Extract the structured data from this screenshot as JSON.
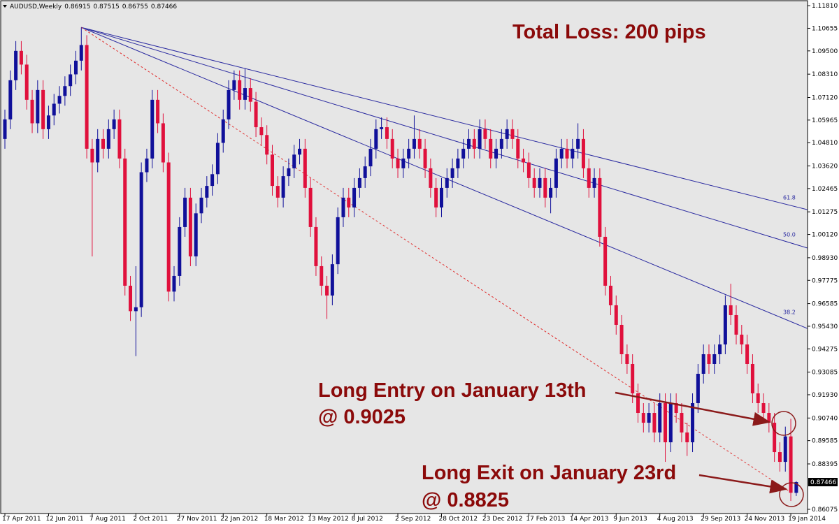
{
  "chart_data": {
    "type": "candlestick",
    "symbol": "AUDUSD,Weekly",
    "title": "Total Loss: 200 pips",
    "annotations": [
      "Long Entry on January 13th",
      "@ 0.9025",
      "Long Exit on January 23rd",
      "@ 0.8825"
    ],
    "bull_color": "#10109a",
    "bear_color": "#e0103c",
    "grid": false,
    "ylim": [
      0.8586,
      1.121
    ],
    "yticks": [
      {
        "value": 1.1181,
        "label": "1.11810"
      },
      1.10655,
      {
        "value": 1.095,
        "label": "1.09500"
      },
      {
        "value": 1.0831,
        "label": "1.08310"
      },
      {
        "value": 1.0712,
        "label": "1.07120"
      },
      1.05965,
      {
        "value": 1.0481,
        "label": "1.04810"
      },
      {
        "value": 1.0362,
        "label": "1.03620"
      },
      1.02465,
      1.01275,
      {
        "value": 1.0012,
        "label": "1.00120"
      },
      {
        "value": 0.9893,
        "label": "0.98930"
      },
      0.97775,
      0.96585,
      {
        "value": 0.9543,
        "label": "0.95430"
      },
      0.94275,
      0.93085,
      {
        "value": 0.9193,
        "label": "0.91930"
      },
      {
        "value": 0.9074,
        "label": "0.90740"
      },
      0.89585,
      0.88395,
      0.86075
    ],
    "categories": [
      "17 Apr 2011",
      null,
      null,
      null,
      null,
      null,
      null,
      null,
      "12 Jun 2011",
      null,
      null,
      null,
      null,
      null,
      null,
      null,
      "7 Aug 2011",
      null,
      null,
      null,
      null,
      null,
      null,
      null,
      "2 Oct 2011",
      null,
      null,
      null,
      null,
      null,
      null,
      null,
      "27 Nov 2011",
      null,
      null,
      null,
      null,
      null,
      null,
      null,
      "22 Jan 2012",
      null,
      null,
      null,
      null,
      null,
      null,
      null,
      "18 Mar 2012",
      null,
      null,
      null,
      null,
      null,
      null,
      null,
      "13 May 2012",
      null,
      null,
      null,
      null,
      null,
      null,
      null,
      "8 Jul 2012",
      null,
      null,
      null,
      null,
      null,
      null,
      null,
      "2 Sep 2012",
      null,
      null,
      null,
      null,
      null,
      null,
      null,
      "28 Oct 2012",
      null,
      null,
      null,
      null,
      null,
      null,
      null,
      "23 Dec 2012",
      null,
      null,
      null,
      null,
      null,
      null,
      null,
      "17 Feb 2013",
      null,
      null,
      null,
      null,
      null,
      null,
      null,
      "14 Apr 2013",
      null,
      null,
      null,
      null,
      null,
      null,
      null,
      "9 Jun 2013",
      null,
      null,
      null,
      null,
      null,
      null,
      null,
      "4 Aug 2013",
      null,
      null,
      null,
      null,
      null,
      null,
      null,
      "29 Sep 2013",
      null,
      null,
      null,
      null,
      null,
      null,
      null,
      "24 Nov 2013",
      null,
      null,
      null,
      null,
      null,
      null,
      null,
      "19 Jan 2014",
      null
    ],
    "candles": [
      [
        1.05,
        1.065,
        1.045,
        1.06
      ],
      [
        1.06,
        1.085,
        1.055,
        1.08
      ],
      [
        1.08,
        1.1,
        1.075,
        1.095
      ],
      [
        1.095,
        1.1,
        1.083,
        1.088
      ],
      [
        1.088,
        1.093,
        1.065,
        1.07
      ],
      [
        1.07,
        1.075,
        1.053,
        1.058
      ],
      [
        1.058,
        1.08,
        1.053,
        1.075
      ],
      [
        1.075,
        1.08,
        1.05,
        1.055
      ],
      [
        1.055,
        1.067,
        1.05,
        1.062
      ],
      [
        1.062,
        1.073,
        1.057,
        1.068
      ],
      [
        1.068,
        1.077,
        1.063,
        1.072
      ],
      [
        1.072,
        1.082,
        1.067,
        1.077
      ],
      [
        1.077,
        1.088,
        1.072,
        1.083
      ],
      [
        1.083,
        1.095,
        1.078,
        1.09
      ],
      [
        1.09,
        1.107,
        1.085,
        1.098
      ],
      [
        1.098,
        1.103,
        1.04,
        1.045
      ],
      [
        1.045,
        1.05,
        0.99,
        1.038
      ],
      [
        1.038,
        1.055,
        1.033,
        1.05
      ],
      [
        1.05,
        1.055,
        1.04,
        1.045
      ],
      [
        1.045,
        1.06,
        1.04,
        1.055
      ],
      [
        1.055,
        1.065,
        1.05,
        1.06
      ],
      [
        1.06,
        1.065,
        1.035,
        1.04
      ],
      [
        1.04,
        1.045,
        0.97,
        0.975
      ],
      [
        0.975,
        0.98,
        0.957,
        0.962
      ],
      [
        0.962,
        0.985,
        0.939,
        0.964
      ],
      [
        0.964,
        1.038,
        0.959,
        1.033
      ],
      [
        1.033,
        1.045,
        1.028,
        1.04
      ],
      [
        1.04,
        1.075,
        1.035,
        1.07
      ],
      [
        1.07,
        1.075,
        1.053,
        1.058
      ],
      [
        1.058,
        1.063,
        1.033,
        1.038
      ],
      [
        1.038,
        1.043,
        0.967,
        0.972
      ],
      [
        0.972,
        0.985,
        0.967,
        0.98
      ],
      [
        0.98,
        1.01,
        0.975,
        1.005
      ],
      [
        1.005,
        1.025,
        1.0,
        1.02
      ],
      [
        1.02,
        1.025,
        0.985,
        0.99
      ],
      [
        0.99,
        1.017,
        0.985,
        1.012
      ],
      [
        1.012,
        1.025,
        1.007,
        1.02
      ],
      [
        1.02,
        1.031,
        1.015,
        1.026
      ],
      [
        1.026,
        1.037,
        1.021,
        1.032
      ],
      [
        1.032,
        1.053,
        1.027,
        1.048
      ],
      [
        1.048,
        1.065,
        1.043,
        1.06
      ],
      [
        1.06,
        1.08,
        1.055,
        1.075
      ],
      [
        1.075,
        1.085,
        1.07,
        1.08
      ],
      [
        1.08,
        1.085,
        1.065,
        1.07
      ],
      [
        1.07,
        1.086,
        1.065,
        1.076
      ],
      [
        1.076,
        1.081,
        1.064,
        1.069
      ],
      [
        1.069,
        1.074,
        1.051,
        1.056
      ],
      [
        1.056,
        1.061,
        1.047,
        1.052
      ],
      [
        1.052,
        1.057,
        1.037,
        1.042
      ],
      [
        1.042,
        1.047,
        1.021,
        1.026
      ],
      [
        1.026,
        1.031,
        1.015,
        1.02
      ],
      [
        1.02,
        1.036,
        1.015,
        1.031
      ],
      [
        1.031,
        1.04,
        1.026,
        1.035
      ],
      [
        1.035,
        1.047,
        1.03,
        1.042
      ],
      [
        1.042,
        1.05,
        1.037,
        1.045
      ],
      [
        1.045,
        1.05,
        1.02,
        1.025
      ],
      [
        1.025,
        1.03,
        1.0,
        1.005
      ],
      [
        1.005,
        1.01,
        0.98,
        0.985
      ],
      [
        0.985,
        0.99,
        0.97,
        0.975
      ],
      [
        0.975,
        0.98,
        0.958,
        0.97
      ],
      [
        0.97,
        0.991,
        0.965,
        0.986
      ],
      [
        0.986,
        1.015,
        0.981,
        1.01
      ],
      [
        1.01,
        1.025,
        1.005,
        1.02
      ],
      [
        1.02,
        1.025,
        1.01,
        1.015
      ],
      [
        1.015,
        1.03,
        1.01,
        1.025
      ],
      [
        1.025,
        1.035,
        1.02,
        1.03
      ],
      [
        1.03,
        1.041,
        1.025,
        1.036
      ],
      [
        1.036,
        1.05,
        1.031,
        1.045
      ],
      [
        1.045,
        1.06,
        1.04,
        1.055
      ],
      [
        1.055,
        1.061,
        1.05,
        1.056
      ],
      [
        1.056,
        1.061,
        1.045,
        1.05
      ],
      [
        1.05,
        1.055,
        1.035,
        1.04
      ],
      [
        1.04,
        1.045,
        1.03,
        1.035
      ],
      [
        1.035,
        1.045,
        1.03,
        1.04
      ],
      [
        1.04,
        1.05,
        1.035,
        1.045
      ],
      [
        1.045,
        1.062,
        1.04,
        1.05
      ],
      [
        1.05,
        1.055,
        1.04,
        1.045
      ],
      [
        1.045,
        1.05,
        1.03,
        1.035
      ],
      [
        1.035,
        1.04,
        1.02,
        1.025
      ],
      [
        1.025,
        1.03,
        1.01,
        1.015
      ],
      [
        1.015,
        1.03,
        1.01,
        1.025
      ],
      [
        1.025,
        1.035,
        1.02,
        1.03
      ],
      [
        1.03,
        1.04,
        1.025,
        1.035
      ],
      [
        1.035,
        1.045,
        1.03,
        1.04
      ],
      [
        1.04,
        1.05,
        1.035,
        1.045
      ],
      [
        1.045,
        1.055,
        1.04,
        1.05
      ],
      [
        1.05,
        1.055,
        1.04,
        1.045
      ],
      [
        1.045,
        1.06,
        1.04,
        1.055
      ],
      [
        1.055,
        1.06,
        1.045,
        1.05
      ],
      [
        1.05,
        1.055,
        1.035,
        1.04
      ],
      [
        1.04,
        1.05,
        1.035,
        1.045
      ],
      [
        1.045,
        1.055,
        1.04,
        1.05
      ],
      [
        1.05,
        1.06,
        1.045,
        1.055
      ],
      [
        1.055,
        1.06,
        1.045,
        1.05
      ],
      [
        1.05,
        1.055,
        1.035,
        1.04
      ],
      [
        1.04,
        1.045,
        1.033,
        1.038
      ],
      [
        1.038,
        1.043,
        1.025,
        1.03
      ],
      [
        1.03,
        1.035,
        1.02,
        1.025
      ],
      [
        1.025,
        1.035,
        1.02,
        1.03
      ],
      [
        1.03,
        1.035,
        1.015,
        1.02
      ],
      [
        1.02,
        1.03,
        1.012,
        1.025
      ],
      [
        1.025,
        1.045,
        1.02,
        1.04
      ],
      [
        1.04,
        1.05,
        1.035,
        1.045
      ],
      [
        1.045,
        1.05,
        1.035,
        1.04
      ],
      [
        1.04,
        1.05,
        1.035,
        1.045
      ],
      [
        1.045,
        1.058,
        1.04,
        1.05
      ],
      [
        1.05,
        1.055,
        1.03,
        1.035
      ],
      [
        1.035,
        1.04,
        1.02,
        1.025
      ],
      [
        1.025,
        1.035,
        1.02,
        1.03
      ],
      [
        1.03,
        1.035,
        0.995,
        1.0
      ],
      [
        1.0,
        1.005,
        0.97,
        0.975
      ],
      [
        0.975,
        0.98,
        0.96,
        0.965
      ],
      [
        0.965,
        0.97,
        0.95,
        0.955
      ],
      [
        0.955,
        0.96,
        0.935,
        0.94
      ],
      [
        0.94,
        0.945,
        0.93,
        0.935
      ],
      [
        0.935,
        0.94,
        0.915,
        0.92
      ],
      [
        0.92,
        0.925,
        0.905,
        0.91
      ],
      [
        0.91,
        0.915,
        0.9,
        0.905
      ],
      [
        0.905,
        0.915,
        0.9,
        0.91
      ],
      [
        0.91,
        0.915,
        0.895,
        0.9
      ],
      [
        0.9,
        0.92,
        0.895,
        0.915
      ],
      [
        0.915,
        0.92,
        0.885,
        0.895
      ],
      [
        0.895,
        0.92,
        0.89,
        0.915
      ],
      [
        0.915,
        0.92,
        0.905,
        0.91
      ],
      [
        0.91,
        0.915,
        0.895,
        0.9
      ],
      [
        0.9,
        0.905,
        0.888,
        0.895
      ],
      [
        0.895,
        0.92,
        0.89,
        0.915
      ],
      [
        0.915,
        0.935,
        0.91,
        0.93
      ],
      [
        0.93,
        0.945,
        0.925,
        0.94
      ],
      [
        0.94,
        0.945,
        0.93,
        0.935
      ],
      [
        0.935,
        0.945,
        0.93,
        0.94
      ],
      [
        0.94,
        0.95,
        0.935,
        0.945
      ],
      [
        0.945,
        0.97,
        0.94,
        0.965
      ],
      [
        0.965,
        0.976,
        0.955,
        0.96
      ],
      [
        0.96,
        0.965,
        0.945,
        0.95
      ],
      [
        0.95,
        0.955,
        0.94,
        0.945
      ],
      [
        0.945,
        0.95,
        0.93,
        0.935
      ],
      [
        0.935,
        0.94,
        0.915,
        0.92
      ],
      [
        0.92,
        0.925,
        0.91,
        0.915
      ],
      [
        0.915,
        0.92,
        0.905,
        0.91
      ],
      [
        0.91,
        0.915,
        0.9,
        0.905
      ],
      [
        0.905,
        0.91,
        0.885,
        0.89
      ],
      [
        0.89,
        0.895,
        0.88,
        0.885
      ],
      [
        0.885,
        0.903,
        0.88,
        0.898
      ],
      [
        0.898,
        0.907,
        0.865,
        0.8692
      ],
      [
        0.86915,
        0.87515,
        0.86755,
        0.87466
      ]
    ],
    "fan": {
      "start": {
        "index": 14,
        "price": 1.107
      },
      "lines": [
        {
          "label": "61.8",
          "end": {
            "index": 147,
            "price": 1.0139
          }
        },
        {
          "label": "50.0",
          "end": {
            "index": 147,
            "price": 0.9943
          }
        },
        {
          "label": "38.2",
          "end": {
            "index": 147,
            "price": 0.9532
          }
        }
      ]
    },
    "trend": {
      "start": {
        "index": 14,
        "price": 1.107
      },
      "end": {
        "index": 144,
        "price": 0.8694
      }
    }
  }
}
